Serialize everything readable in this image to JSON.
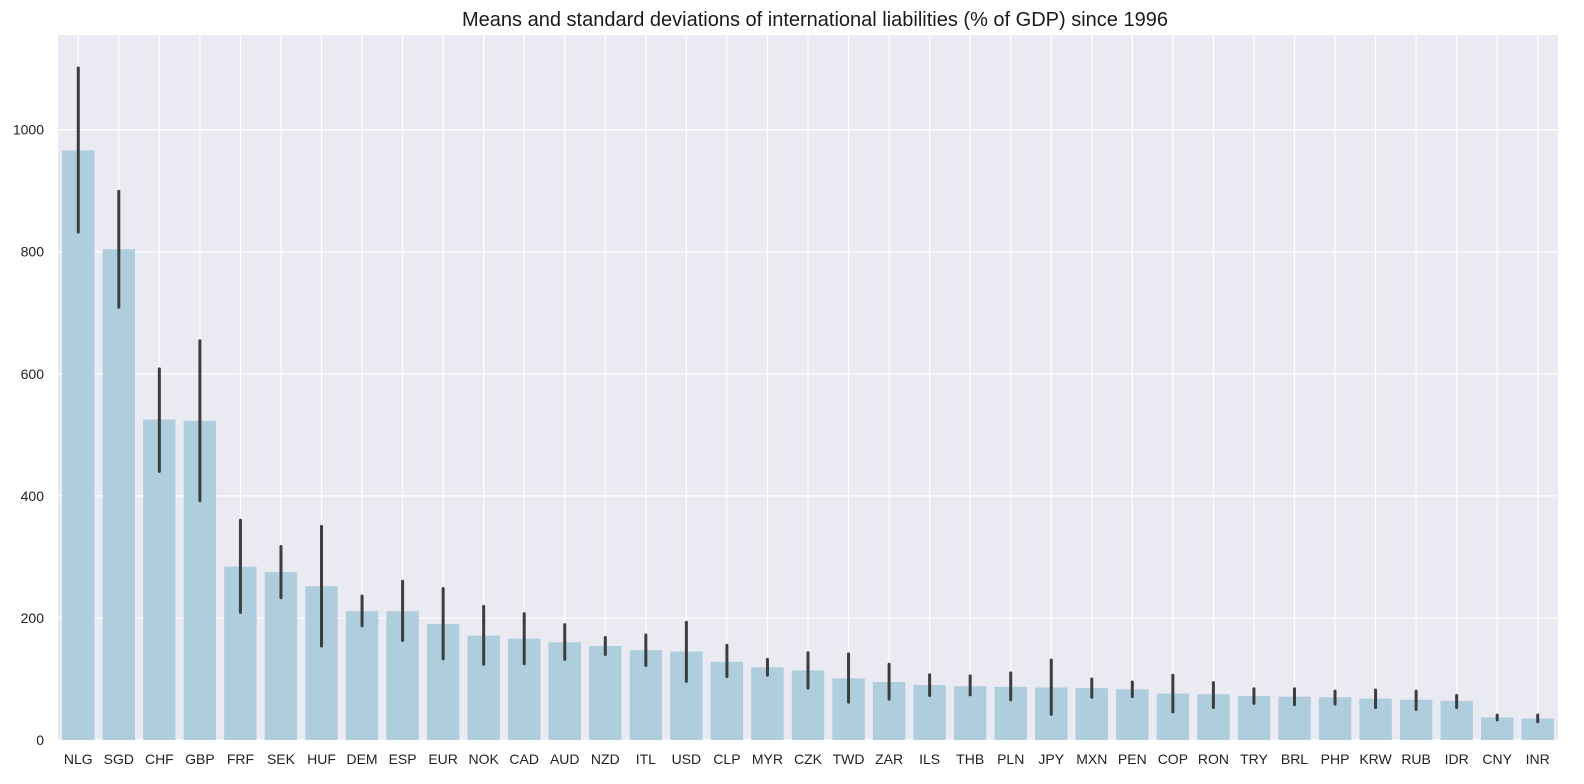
{
  "chart_data": {
    "type": "bar",
    "title": "Means and standard deviations of international liabilities (% of GDP) since 1996",
    "xlabel": "",
    "ylabel": "",
    "ylim": [
      0,
      1155
    ],
    "yticks": [
      0,
      200,
      400,
      600,
      800,
      1000
    ],
    "grid": true,
    "categories": [
      "NLG",
      "SGD",
      "CHF",
      "GBP",
      "FRF",
      "SEK",
      "HUF",
      "DEM",
      "ESP",
      "EUR",
      "NOK",
      "CAD",
      "AUD",
      "NZD",
      "ITL",
      "USD",
      "CLP",
      "MYR",
      "CZK",
      "TWD",
      "ZAR",
      "ILS",
      "THB",
      "PLN",
      "JPY",
      "MXN",
      "PEN",
      "COP",
      "RON",
      "TRY",
      "BRL",
      "PHP",
      "KRW",
      "RUB",
      "IDR",
      "CNY",
      "INR"
    ],
    "values": [
      966,
      804,
      525,
      523,
      284,
      275,
      252,
      211,
      211,
      190,
      171,
      166,
      160,
      154,
      147,
      145,
      128,
      119,
      114,
      101,
      95,
      90,
      88,
      87,
      86,
      85,
      83,
      76,
      75,
      72,
      71,
      70,
      68,
      66,
      64,
      37,
      35
    ],
    "error_low": [
      832,
      709,
      440,
      392,
      209,
      233,
      154,
      187,
      163,
      133,
      124,
      125,
      132,
      140,
      122,
      96,
      104,
      106,
      85,
      62,
      67,
      73,
      74,
      66,
      42,
      70,
      71,
      46,
      53,
      60,
      58,
      59,
      53,
      50,
      53,
      33,
      30
    ],
    "error_high": [
      1101,
      899,
      608,
      654,
      360,
      317,
      350,
      236,
      260,
      248,
      219,
      207,
      189,
      168,
      172,
      193,
      155,
      132,
      143,
      141,
      124,
      107,
      105,
      110,
      131,
      100,
      95,
      106,
      94,
      84,
      84,
      80,
      82,
      80,
      73,
      41,
      41
    ],
    "colors": {
      "background": "#eaeaf2",
      "bar": "#aecddd",
      "error_bar": "#3d3d3d",
      "grid": "#ffffff"
    }
  }
}
